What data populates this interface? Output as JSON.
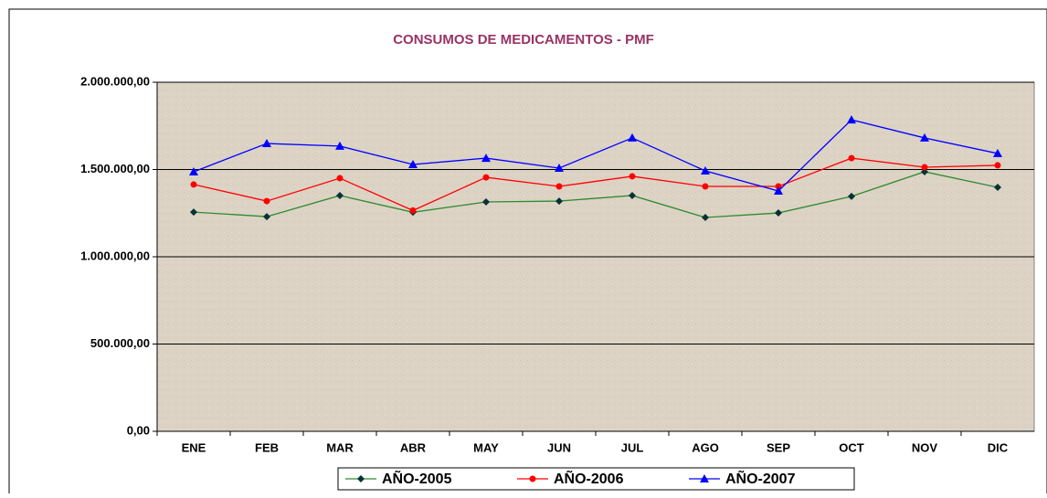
{
  "chart_data": {
    "type": "line",
    "title": "CONSUMOS DE MEDICAMENTOS - PMF",
    "categories": [
      "ENE",
      "FEB",
      "MAR",
      "ABR",
      "MAY",
      "JUN",
      "JUL",
      "AGO",
      "SEP",
      "OCT",
      "NOV",
      "DIC"
    ],
    "series": [
      {
        "name": "AÑO-2005",
        "color": "#2e8b2e",
        "marker_color": "#003333",
        "marker": "diamond",
        "values": [
          1256000,
          1230000,
          1351000,
          1255000,
          1314000,
          1319000,
          1351000,
          1225000,
          1251000,
          1346000,
          1487000,
          1398000
        ]
      },
      {
        "name": "AÑO-2006",
        "color": "#ff0000",
        "marker_color": "#ff0000",
        "marker": "circle",
        "values": [
          1414000,
          1319000,
          1450000,
          1265000,
          1455000,
          1403000,
          1461000,
          1403000,
          1403000,
          1565000,
          1513000,
          1524000
        ]
      },
      {
        "name": "AÑO-2007",
        "color": "#0000ff",
        "marker_color": "#0000ff",
        "marker": "triangle",
        "values": [
          1487000,
          1649000,
          1634000,
          1529000,
          1565000,
          1508000,
          1681000,
          1492000,
          1377000,
          1785000,
          1681000,
          1592000
        ]
      }
    ],
    "ylim": [
      0,
      2000000
    ],
    "yticks": [
      {
        "value": 0,
        "label": "0,00"
      },
      {
        "value": 500000,
        "label": "500.000,00"
      },
      {
        "value": 1000000,
        "label": "1.000.000,00"
      },
      {
        "value": 1500000,
        "label": "1.500.000,00"
      },
      {
        "value": 2000000,
        "label": "2.000.000,00"
      }
    ],
    "grid": true,
    "legend": "bottom"
  }
}
